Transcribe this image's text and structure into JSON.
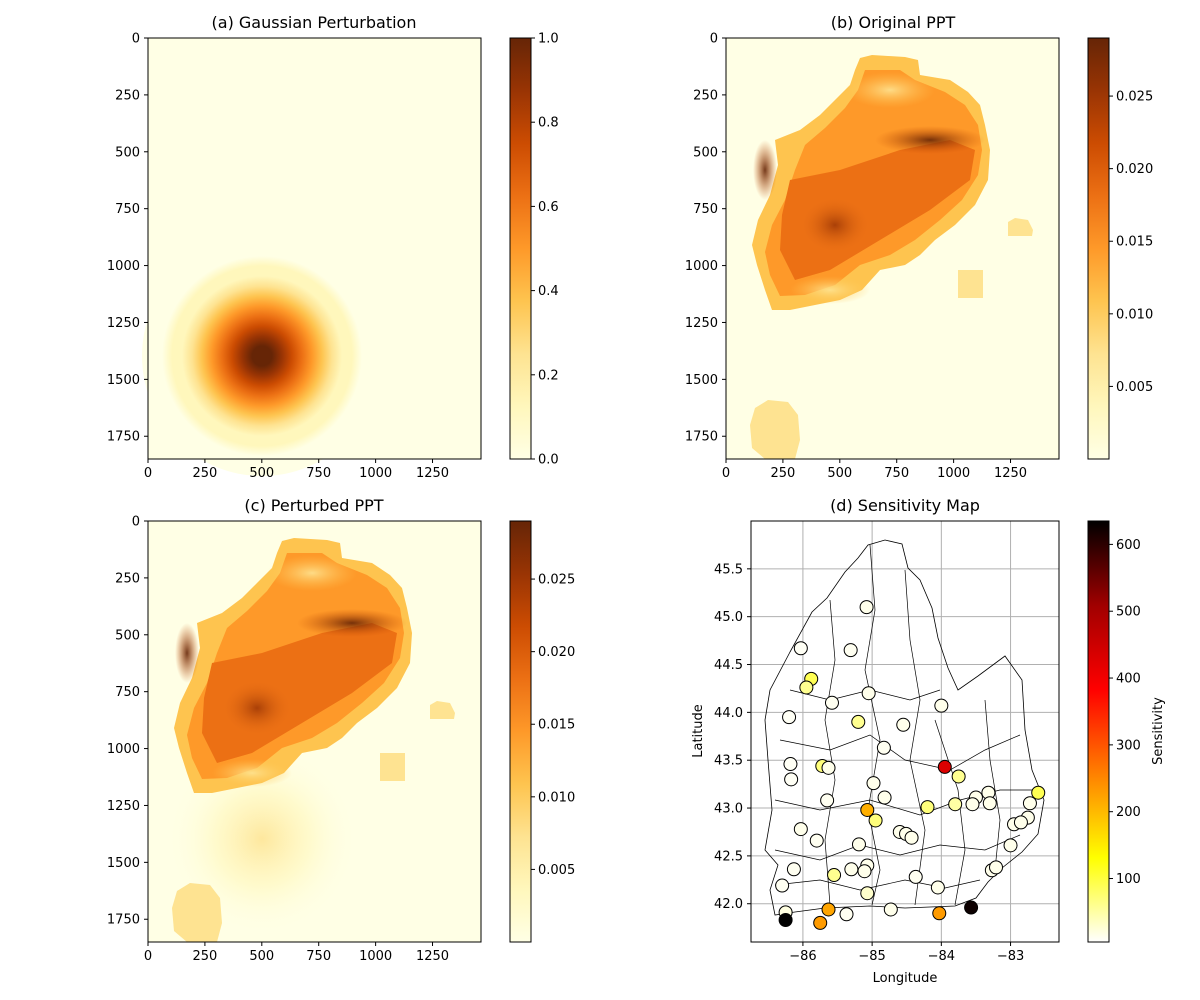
{
  "colors": {
    "afmhot_r": [
      "#ffffe5",
      "#fff7bc",
      "#fee391",
      "#fec44f",
      "#fe9929",
      "#ec7014",
      "#cc4c02",
      "#993404",
      "#662506"
    ],
    "hot_r": [
      "#ffffff",
      "#ffff00",
      "#ff8000",
      "#ff0000",
      "#a00000",
      "#000000"
    ],
    "grid": "#b0b0b0",
    "boundary": "#000000"
  },
  "chart_data": [
    {
      "id": "a",
      "type": "heatmap",
      "title": "(a) Gaussian Perturbation",
      "xticks": [
        "0",
        "250",
        "500",
        "750",
        "1000",
        "1250"
      ],
      "yticks": [
        "0",
        "250",
        "500",
        "750",
        "1000",
        "1250",
        "1500",
        "1750"
      ],
      "xlim": [
        0,
        1463
      ],
      "ylim": [
        1850,
        0
      ],
      "colorbar": {
        "ticks": [
          "0.0",
          "0.2",
          "0.4",
          "0.6",
          "0.8",
          "1.0"
        ],
        "range": [
          0,
          1
        ]
      },
      "gaussian": {
        "center_x": 500,
        "center_y": 1400,
        "sigma": 130,
        "peak": 1.0
      }
    },
    {
      "id": "b",
      "type": "heatmap",
      "title": "(b) Original PPT",
      "xticks": [
        "0",
        "250",
        "500",
        "750",
        "1000",
        "1250"
      ],
      "yticks": [
        "0",
        "250",
        "500",
        "750",
        "1000",
        "1250",
        "1500",
        "1750"
      ],
      "xlim": [
        0,
        1463
      ],
      "ylim": [
        1850,
        0
      ],
      "colorbar": {
        "ticks": [
          "0.005",
          "0.010",
          "0.015",
          "0.020",
          "0.025"
        ],
        "range": [
          0,
          0.029
        ]
      }
    },
    {
      "id": "c",
      "type": "heatmap",
      "title": "(c) Perturbed PPT",
      "xticks": [
        "0",
        "250",
        "500",
        "750",
        "1000",
        "1250"
      ],
      "yticks": [
        "0",
        "250",
        "500",
        "750",
        "1000",
        "1250",
        "1500",
        "1750"
      ],
      "xlim": [
        0,
        1463
      ],
      "ylim": [
        1850,
        0
      ],
      "colorbar": {
        "ticks": [
          "0.005",
          "0.010",
          "0.015",
          "0.020",
          "0.025"
        ],
        "range": [
          0,
          0.029
        ]
      }
    },
    {
      "id": "d",
      "type": "scatter",
      "title": "(d) Sensitivity Map",
      "xlabel": "Longitude",
      "ylabel": "Latitude",
      "xlim": [
        -86.75,
        -82.3
      ],
      "ylim": [
        41.6,
        46.0
      ],
      "xticks": [
        "−86",
        "−85",
        "−84",
        "−83"
      ],
      "yticks": [
        "42.0",
        "42.5",
        "43.0",
        "43.5",
        "44.0",
        "44.5",
        "45.0",
        "45.5"
      ],
      "grid": true,
      "colorbar": {
        "label": "Sensitivity",
        "ticks": [
          "100",
          "200",
          "300",
          "400",
          "500",
          "600"
        ],
        "range": [
          5,
          635
        ]
      },
      "points": [
        {
          "lon": -85.08,
          "lat": 45.1,
          "s": 15
        },
        {
          "lon": -86.03,
          "lat": 44.67,
          "s": 10
        },
        {
          "lon": -85.31,
          "lat": 44.65,
          "s": 12
        },
        {
          "lon": -85.88,
          "lat": 44.35,
          "s": 90
        },
        {
          "lon": -85.95,
          "lat": 44.26,
          "s": 60
        },
        {
          "lon": -85.05,
          "lat": 44.2,
          "s": 15
        },
        {
          "lon": -85.58,
          "lat": 44.1,
          "s": 12
        },
        {
          "lon": -84.0,
          "lat": 44.07,
          "s": 15
        },
        {
          "lon": -86.2,
          "lat": 43.95,
          "s": 10
        },
        {
          "lon": -85.2,
          "lat": 43.9,
          "s": 60
        },
        {
          "lon": -84.55,
          "lat": 43.87,
          "s": 15
        },
        {
          "lon": -84.83,
          "lat": 43.63,
          "s": 12
        },
        {
          "lon": -86.18,
          "lat": 43.46,
          "s": 10
        },
        {
          "lon": -85.72,
          "lat": 43.44,
          "s": 70
        },
        {
          "lon": -85.63,
          "lat": 43.42,
          "s": 15
        },
        {
          "lon": -83.95,
          "lat": 43.43,
          "s": 430
        },
        {
          "lon": -83.75,
          "lat": 43.33,
          "s": 60
        },
        {
          "lon": -86.17,
          "lat": 43.3,
          "s": 10
        },
        {
          "lon": -84.98,
          "lat": 43.26,
          "s": 15
        },
        {
          "lon": -83.32,
          "lat": 43.16,
          "s": 15
        },
        {
          "lon": -83.5,
          "lat": 43.11,
          "s": 15
        },
        {
          "lon": -82.6,
          "lat": 43.16,
          "s": 90
        },
        {
          "lon": -85.65,
          "lat": 43.08,
          "s": 12
        },
        {
          "lon": -84.82,
          "lat": 43.11,
          "s": 15
        },
        {
          "lon": -83.8,
          "lat": 43.04,
          "s": 50
        },
        {
          "lon": -83.55,
          "lat": 43.04,
          "s": 15
        },
        {
          "lon": -83.3,
          "lat": 43.05,
          "s": 15
        },
        {
          "lon": -82.72,
          "lat": 43.05,
          "s": 15
        },
        {
          "lon": -84.2,
          "lat": 43.01,
          "s": 70
        },
        {
          "lon": -85.07,
          "lat": 42.98,
          "s": 210
        },
        {
          "lon": -84.95,
          "lat": 42.87,
          "s": 70
        },
        {
          "lon": -82.75,
          "lat": 42.9,
          "s": 15
        },
        {
          "lon": -86.03,
          "lat": 42.78,
          "s": 15
        },
        {
          "lon": -84.6,
          "lat": 42.75,
          "s": 15
        },
        {
          "lon": -84.51,
          "lat": 42.73,
          "s": 15
        },
        {
          "lon": -84.43,
          "lat": 42.69,
          "s": 15
        },
        {
          "lon": -85.8,
          "lat": 42.66,
          "s": 12
        },
        {
          "lon": -85.19,
          "lat": 42.62,
          "s": 15
        },
        {
          "lon": -83.0,
          "lat": 42.61,
          "s": 15
        },
        {
          "lon": -82.95,
          "lat": 42.83,
          "s": 15
        },
        {
          "lon": -82.85,
          "lat": 42.85,
          "s": 15
        },
        {
          "lon": -86.13,
          "lat": 42.36,
          "s": 12
        },
        {
          "lon": -85.07,
          "lat": 42.4,
          "s": 15
        },
        {
          "lon": -85.11,
          "lat": 42.34,
          "s": 15
        },
        {
          "lon": -85.3,
          "lat": 42.36,
          "s": 15
        },
        {
          "lon": -85.55,
          "lat": 42.3,
          "s": 60
        },
        {
          "lon": -84.37,
          "lat": 42.28,
          "s": 12
        },
        {
          "lon": -83.27,
          "lat": 42.35,
          "s": 15
        },
        {
          "lon": -83.21,
          "lat": 42.38,
          "s": 15
        },
        {
          "lon": -86.3,
          "lat": 42.19,
          "s": 12
        },
        {
          "lon": -84.05,
          "lat": 42.17,
          "s": 15
        },
        {
          "lon": -85.07,
          "lat": 42.11,
          "s": 30
        },
        {
          "lon": -86.25,
          "lat": 41.91,
          "s": 20
        },
        {
          "lon": -85.63,
          "lat": 41.94,
          "s": 220
        },
        {
          "lon": -85.37,
          "lat": 41.89,
          "s": 12
        },
        {
          "lon": -84.73,
          "lat": 41.94,
          "s": 15
        },
        {
          "lon": -84.03,
          "lat": 41.9,
          "s": 230
        },
        {
          "lon": -83.57,
          "lat": 41.96,
          "s": 625
        },
        {
          "lon": -86.25,
          "lat": 41.83,
          "s": 635
        },
        {
          "lon": -85.75,
          "lat": 41.8,
          "s": 230
        }
      ]
    }
  ]
}
